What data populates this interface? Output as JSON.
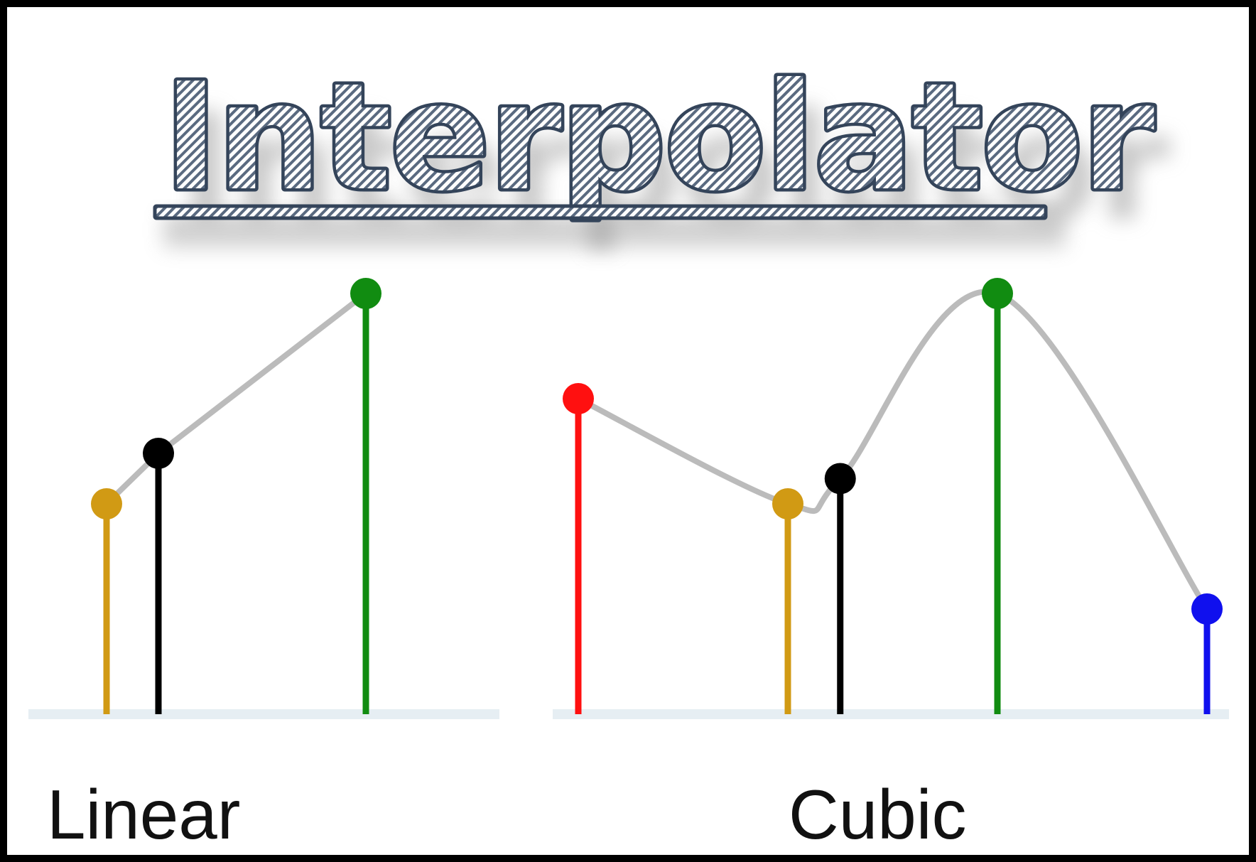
{
  "title": "Interpolator",
  "colors": {
    "frame": "#000000",
    "background": "#ffffff",
    "title_outline": "#34445a",
    "title_fill": "#ffffff",
    "curve": "#bbbbbb",
    "baseline": "#e6eef3",
    "gold": "#d19a14",
    "black": "#000000",
    "green": "#118c11",
    "red": "#ff1010",
    "blue": "#1010ee"
  },
  "panels": [
    {
      "name": "linear",
      "label": "Linear",
      "interpolation": "linear",
      "points": [
        {
          "color": "gold",
          "x": 0.5,
          "y": 0.5
        },
        {
          "color": "black",
          "x": 1.0,
          "y": 0.62
        },
        {
          "color": "green",
          "x": 3.0,
          "y": 1.0
        }
      ]
    },
    {
      "name": "cubic",
      "label": "Cubic",
      "interpolation": "cubic",
      "points": [
        {
          "color": "red",
          "x": 0.0,
          "y": 0.75
        },
        {
          "color": "gold",
          "x": 2.0,
          "y": 0.5
        },
        {
          "color": "black",
          "x": 2.5,
          "y": 0.56
        },
        {
          "color": "green",
          "x": 4.0,
          "y": 1.0
        },
        {
          "color": "blue",
          "x": 6.0,
          "y": 0.25
        }
      ]
    }
  ]
}
